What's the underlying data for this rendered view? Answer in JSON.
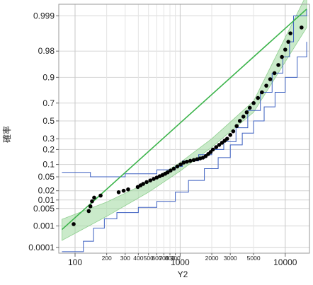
{
  "chart_data": {
    "type": "scatter",
    "xlabel": "Y2",
    "ylabel": "確率",
    "x_scale": "log",
    "y_scale": "normal-quantile",
    "xlim": [
      70,
      17000
    ],
    "ylim": [
      5e-05,
      0.9997
    ],
    "x_ticks": [
      {
        "value": 100,
        "label": "100",
        "major": true
      },
      {
        "value": 200,
        "label": "200",
        "major": false
      },
      {
        "value": 300,
        "label": "300",
        "major": false
      },
      {
        "value": 400,
        "label": "400",
        "major": false
      },
      {
        "value": 500,
        "label": "500",
        "major": false
      },
      {
        "value": 600,
        "label": "600",
        "major": false
      },
      {
        "value": 700,
        "label": "700",
        "major": false
      },
      {
        "value": 800,
        "label": "800",
        "major": false
      },
      {
        "value": 900,
        "label": "900",
        "major": false
      },
      {
        "value": 1000,
        "label": "1000",
        "major": true
      },
      {
        "value": 2000,
        "label": "2000",
        "major": false
      },
      {
        "value": 3000,
        "label": "3000",
        "major": false
      },
      {
        "value": 5000,
        "label": "5000",
        "major": false
      },
      {
        "value": 10000,
        "label": "10000",
        "major": true
      }
    ],
    "y_ticks": [
      {
        "value": 0.0001,
        "label": "0.0001"
      },
      {
        "value": 0.001,
        "label": "0.001"
      },
      {
        "value": 0.005,
        "label": "0.005"
      },
      {
        "value": 0.01,
        "label": "0.01"
      },
      {
        "value": 0.02,
        "label": "0.02"
      },
      {
        "value": 0.05,
        "label": "0.05"
      },
      {
        "value": 0.1,
        "label": "0.1"
      },
      {
        "value": 0.2,
        "label": "0.2"
      },
      {
        "value": 0.3,
        "label": "0.3"
      },
      {
        "value": 0.5,
        "label": "0.5"
      },
      {
        "value": 0.7,
        "label": "0.7"
      },
      {
        "value": 0.9,
        "label": "0.9"
      },
      {
        "value": 0.98,
        "label": "0.98"
      },
      {
        "value": 0.999,
        "label": "0.999"
      }
    ],
    "grid": true,
    "fit_line": {
      "color": "#3cb44b",
      "band_color": "#9fd89f",
      "points": [
        [
          75,
          0.0007
        ],
        [
          16000,
          0.9995
        ]
      ]
    },
    "fit_band": {
      "upper": [
        [
          75,
          0.0019
        ],
        [
          200,
          0.0085
        ],
        [
          500,
          0.036
        ],
        [
          1000,
          0.11
        ],
        [
          2000,
          0.3
        ],
        [
          5000,
          0.72
        ],
        [
          16000,
          0.9999
        ]
      ],
      "lower": [
        [
          75,
          0.00022
        ],
        [
          200,
          0.0025
        ],
        [
          500,
          0.018
        ],
        [
          1000,
          0.07
        ],
        [
          2000,
          0.22
        ],
        [
          5000,
          0.6
        ],
        [
          16000,
          0.997
        ]
      ]
    },
    "series": [
      {
        "role": "data",
        "color": "#000000",
        "points": [
          [
            97,
            0.0012
          ],
          [
            135,
            0.004
          ],
          [
            140,
            0.006
          ],
          [
            145,
            0.009
          ],
          [
            152,
            0.012
          ],
          [
            175,
            0.014
          ],
          [
            260,
            0.018
          ],
          [
            290,
            0.02
          ],
          [
            320,
            0.022
          ],
          [
            395,
            0.026
          ],
          [
            420,
            0.029
          ],
          [
            445,
            0.032
          ],
          [
            480,
            0.036
          ],
          [
            520,
            0.04
          ],
          [
            560,
            0.044
          ],
          [
            600,
            0.048
          ],
          [
            640,
            0.052
          ],
          [
            680,
            0.056
          ],
          [
            720,
            0.06
          ],
          [
            760,
            0.065
          ],
          [
            810,
            0.072
          ],
          [
            870,
            0.08
          ],
          [
            940,
            0.09
          ],
          [
            1010,
            0.1
          ],
          [
            1080,
            0.11
          ],
          [
            1160,
            0.115
          ],
          [
            1250,
            0.12
          ],
          [
            1350,
            0.125
          ],
          [
            1450,
            0.13
          ],
          [
            1550,
            0.135
          ],
          [
            1650,
            0.14
          ],
          [
            1750,
            0.15
          ],
          [
            1850,
            0.165
          ],
          [
            1950,
            0.18
          ],
          [
            2050,
            0.2
          ],
          [
            2200,
            0.22
          ],
          [
            2350,
            0.24
          ],
          [
            2500,
            0.26
          ],
          [
            2650,
            0.28
          ],
          [
            2800,
            0.3
          ],
          [
            3000,
            0.34
          ],
          [
            3200,
            0.38
          ],
          [
            3450,
            0.44
          ],
          [
            3700,
            0.5
          ],
          [
            4000,
            0.55
          ],
          [
            4300,
            0.6
          ],
          [
            4600,
            0.65
          ],
          [
            5000,
            0.7
          ],
          [
            5500,
            0.75
          ],
          [
            6000,
            0.8
          ],
          [
            6600,
            0.85
          ],
          [
            7200,
            0.89
          ],
          [
            7900,
            0.92
          ],
          [
            8600,
            0.95
          ],
          [
            9300,
            0.97
          ],
          [
            10000,
            0.982
          ],
          [
            10700,
            0.99
          ],
          [
            11200,
            0.995
          ],
          [
            14300,
            0.997
          ]
        ]
      },
      {
        "role": "confidence-steps-upper",
        "color": "#3b5fc0",
        "points": [
          [
            75,
            0.065
          ],
          [
            140,
            0.05
          ],
          [
            300,
            0.06
          ],
          [
            600,
            0.075
          ],
          [
            900,
            0.09
          ],
          [
            1050,
            0.12
          ],
          [
            1500,
            0.16
          ],
          [
            2000,
            0.2
          ],
          [
            2600,
            0.27
          ],
          [
            3400,
            0.42
          ],
          [
            4400,
            0.62
          ],
          [
            5800,
            0.8
          ],
          [
            7500,
            0.92
          ],
          [
            9500,
            0.97
          ],
          [
            11000,
            0.99
          ],
          [
            12000,
            0.999
          ],
          [
            16000,
            0.9995
          ]
        ]
      },
      {
        "role": "confidence-steps-lower",
        "color": "#3b5fc0",
        "points": [
          [
            75,
            6e-05
          ],
          [
            120,
            0.0002
          ],
          [
            150,
            0.0008
          ],
          [
            190,
            0.002
          ],
          [
            250,
            0.0035
          ],
          [
            400,
            0.0055
          ],
          [
            600,
            0.009
          ],
          [
            900,
            0.018
          ],
          [
            1200,
            0.04
          ],
          [
            1700,
            0.08
          ],
          [
            2300,
            0.14
          ],
          [
            3000,
            0.24
          ],
          [
            3900,
            0.36
          ],
          [
            5000,
            0.5
          ],
          [
            6300,
            0.66
          ],
          [
            8000,
            0.8
          ],
          [
            10000,
            0.9
          ],
          [
            13000,
            0.97
          ],
          [
            16000,
            0.99
          ]
        ]
      }
    ]
  }
}
